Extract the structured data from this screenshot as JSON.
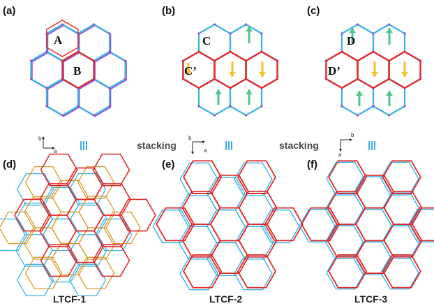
{
  "colors": {
    "blue": "#39b3e6",
    "red": "#e02a2a",
    "orange": "#d99a2a",
    "purple": "#9b4fd0",
    "green_arrow": "#4cc68a",
    "yellow_arrow": "#f5c02f"
  },
  "top_row": {
    "panels": [
      {
        "label": "(a)",
        "regions": [
          "A",
          "B"
        ]
      },
      {
        "label": "(b)",
        "regions": [
          "C",
          "C’"
        ]
      },
      {
        "label": "(c)",
        "regions": [
          "D",
          "D’"
        ]
      }
    ],
    "stacking_text": "stacking"
  },
  "axes": {
    "a_label": "a",
    "b_label": "b"
  },
  "bottom_row": {
    "panels": [
      {
        "label": "(d)",
        "name": "LTCF-1"
      },
      {
        "label": "(e)",
        "name": "LTCF-2"
      },
      {
        "label": "(f)",
        "name": "LTCF-3"
      }
    ]
  }
}
